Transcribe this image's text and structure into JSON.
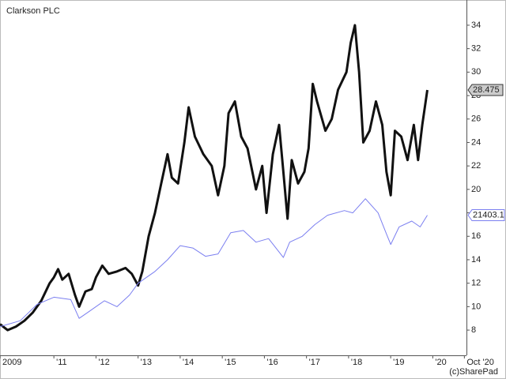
{
  "chart_data": {
    "type": "line",
    "title": "Clarkson PLC",
    "credit": "(c)SharePad",
    "xlim": [
      2009.72,
      2020.8
    ],
    "xticks": [
      {
        "value": 2009.72,
        "label": "2009"
      },
      {
        "value": 2011,
        "label": "'11"
      },
      {
        "value": 2012,
        "label": "'12"
      },
      {
        "value": 2013,
        "label": "'13"
      },
      {
        "value": 2014,
        "label": "'14"
      },
      {
        "value": 2015,
        "label": "'15"
      },
      {
        "value": 2016,
        "label": "'16"
      },
      {
        "value": 2017,
        "label": "'17"
      },
      {
        "value": 2018,
        "label": "'18"
      },
      {
        "value": 2019,
        "label": "'19"
      },
      {
        "value": 2020,
        "label": "'20"
      },
      {
        "value": 2020.75,
        "label": "Oct '20"
      }
    ],
    "ylim": [
      5.85,
      36.15
    ],
    "yticks": [
      8,
      10,
      12,
      14,
      16,
      18,
      20,
      22,
      24,
      26,
      28,
      30,
      32,
      34
    ],
    "y2lim": [
      7034,
      43473
    ],
    "series": [
      {
        "color": "#111111",
        "x": [
          2009.72,
          2009.9,
          2010.1,
          2010.3,
          2010.5,
          2010.7,
          2010.9,
          2011.0,
          2011.1,
          2011.2,
          2011.35,
          2011.5,
          2011.6,
          2011.75,
          2011.9,
          2012.0,
          2012.15,
          2012.3,
          2012.5,
          2012.7,
          2012.85,
          2013.0,
          2013.1,
          2013.25,
          2013.4,
          2013.55,
          2013.7,
          2013.8,
          2013.95,
          2014.1,
          2014.2,
          2014.35,
          2014.55,
          2014.75,
          2014.9,
          2015.05,
          2015.15,
          2015.3,
          2015.45,
          2015.6,
          2015.8,
          2015.95,
          2016.05,
          2016.2,
          2016.35,
          2016.45,
          2016.55,
          2016.65,
          2016.8,
          2016.95,
          2017.05,
          2017.15,
          2017.25,
          2017.45,
          2017.6,
          2017.75,
          2017.95,
          2018.05,
          2018.15,
          2018.25,
          2018.35,
          2018.5,
          2018.65,
          2018.8,
          2018.9,
          2019.0,
          2019.1,
          2019.25,
          2019.4,
          2019.55,
          2019.65,
          2019.75,
          2019.87
        ],
        "values": [
          8.5,
          8,
          8.3,
          8.8,
          9.5,
          10.5,
          12,
          12.5,
          13.2,
          12.3,
          12.8,
          11,
          10,
          11.3,
          11.5,
          12.5,
          13.5,
          12.8,
          13,
          13.3,
          12.8,
          11.8,
          13,
          16,
          18,
          20.5,
          23,
          21,
          20.5,
          24,
          27,
          24.5,
          23,
          22,
          19.5,
          22,
          26.5,
          27.5,
          24.5,
          23.5,
          20,
          22,
          18,
          23,
          25.5,
          21.5,
          17.5,
          22.5,
          20.5,
          21.5,
          23.5,
          29,
          27.5,
          25,
          26,
          28.5,
          30,
          32.5,
          34,
          30,
          24,
          25,
          27.5,
          25.5,
          21.5,
          19.5,
          25,
          24.5,
          22.5,
          25.5,
          22.5,
          25.5,
          28.475
        ]
      },
      {
        "color": "#7b7ff0",
        "axis": "y2",
        "x": [
          2009.72,
          2010.2,
          2010.6,
          2011.0,
          2011.4,
          2011.6,
          2011.8,
          2012.2,
          2012.5,
          2012.8,
          2013.0,
          2013.4,
          2013.7,
          2014.0,
          2014.3,
          2014.6,
          2014.9,
          2015.2,
          2015.5,
          2015.8,
          2016.1,
          2016.45,
          2016.6,
          2016.9,
          2017.2,
          2017.5,
          2017.9,
          2018.1,
          2018.4,
          2018.7,
          2018.9,
          2019.0,
          2019.2,
          2019.5,
          2019.7,
          2019.87
        ],
        "values": [
          9980,
          10580,
          12260,
          12990,
          12750,
          10820,
          11420,
          12630,
          12020,
          13230,
          14430,
          15630,
          16830,
          18280,
          18040,
          17190,
          17430,
          19600,
          19840,
          18640,
          19000,
          17070,
          18640,
          19240,
          20440,
          21400,
          21880,
          21640,
          23090,
          21640,
          19480,
          18400,
          20200,
          20800,
          20200,
          21403.1
        ]
      }
    ]
  }
}
